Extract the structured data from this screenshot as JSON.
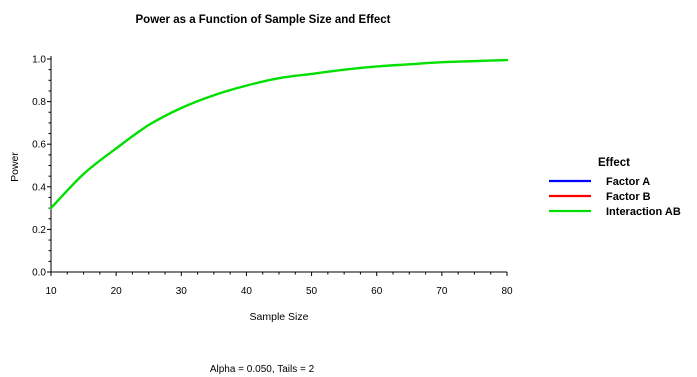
{
  "chart_data": {
    "type": "line",
    "title": "Power as a Function of Sample Size and Effect",
    "xlabel": "Sample Size",
    "ylabel": "Power",
    "xlim": [
      10,
      80
    ],
    "ylim": [
      0,
      1
    ],
    "xticks": [
      10,
      20,
      30,
      40,
      50,
      60,
      70,
      80
    ],
    "xtick_labels": [
      "10",
      "20",
      "30",
      "40",
      "50",
      "60",
      "70",
      "80"
    ],
    "yticks": [
      0,
      0.2,
      0.4,
      0.6,
      0.8,
      1
    ],
    "ytick_labels": [
      "0.0",
      "0.2",
      "0.4",
      "0.6",
      "0.8",
      "1.0"
    ],
    "grid": false,
    "legend": {
      "title": "Effect",
      "position": "right"
    },
    "series": [
      {
        "name": "Factor A",
        "color": "#0000ff",
        "x": [],
        "y": []
      },
      {
        "name": "Factor B",
        "color": "#ff0000",
        "x": [],
        "y": []
      },
      {
        "name": "Interaction AB",
        "color": "#00e000",
        "x": [
          10,
          15,
          20,
          25,
          30,
          35,
          40,
          45,
          50,
          55,
          60,
          65,
          70,
          75,
          80
        ],
        "y": [
          0.3,
          0.46,
          0.58,
          0.69,
          0.77,
          0.83,
          0.875,
          0.91,
          0.93,
          0.95,
          0.965,
          0.975,
          0.985,
          0.99,
          0.995
        ]
      }
    ],
    "footnote": "Alpha = 0.050, Tails = 2"
  }
}
